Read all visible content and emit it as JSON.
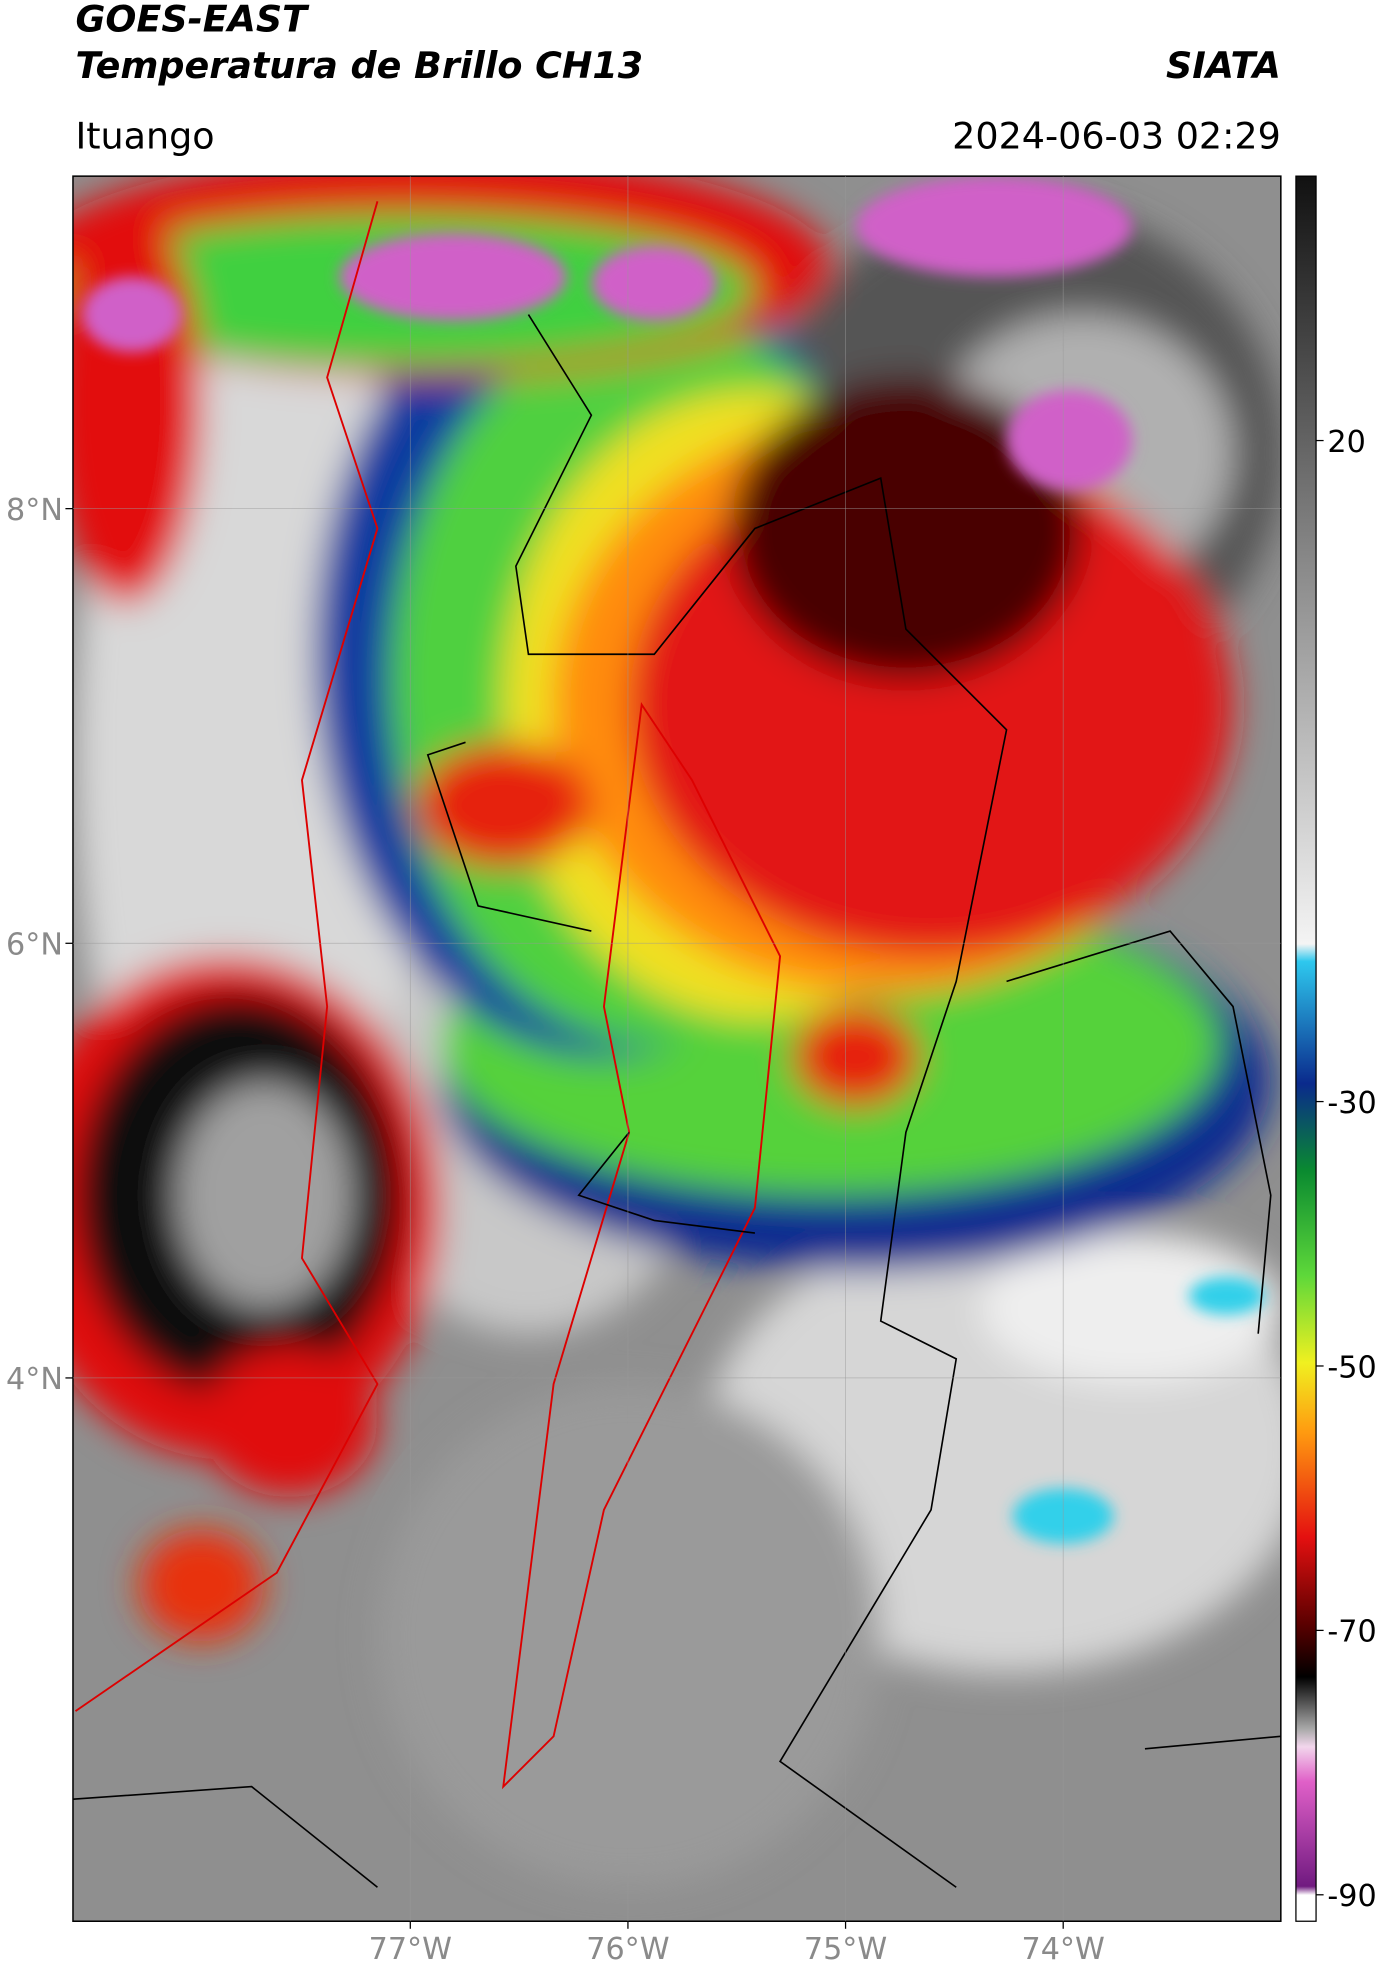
{
  "header": {
    "title": "GOES-EAST",
    "subtitle": "Temperatura de Brillo CH13",
    "agency": "SIATA",
    "location": "Ituango",
    "datetime": "2024-06-03 02:29"
  },
  "map": {
    "xlim": [
      -78.55,
      -73.0
    ],
    "ylim": [
      1.5,
      9.53
    ],
    "xticks": [
      {
        "value": -77,
        "label": "77°W"
      },
      {
        "value": -76,
        "label": "76°W"
      },
      {
        "value": -75,
        "label": "75°W"
      },
      {
        "value": -74,
        "label": "74°W"
      }
    ],
    "yticks": [
      {
        "value": 8,
        "label": "8°N"
      },
      {
        "value": 6,
        "label": "6°N"
      },
      {
        "value": 4,
        "label": "4°N"
      }
    ],
    "grid": true
  },
  "colorbar": {
    "lim": [
      -92,
      40
    ],
    "ticks": [
      20,
      -30,
      -50,
      -70,
      -90
    ]
  }
}
